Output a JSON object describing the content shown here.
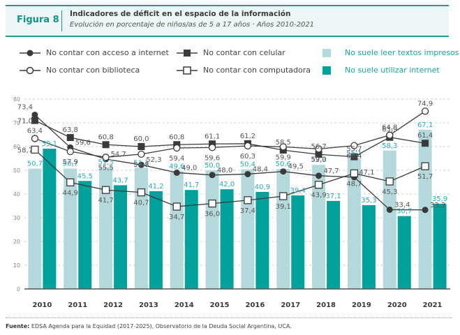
{
  "header": {
    "figure_label": "Figura 8",
    "title": "Indicadores de déficit en el espacio de la información",
    "subtitle": "Evolución en porcentaje de niños/as de 5 a 17 años · Años 2010-2021"
  },
  "legend": [
    {
      "label": "No contar con acceso a internet",
      "symbol": "line-filled-circle"
    },
    {
      "label": "No contar con celular",
      "symbol": "line-filled-square"
    },
    {
      "label": "No suele leer textos impresos",
      "symbol": "bar-light-teal"
    },
    {
      "label": "No contar con biblioteca",
      "symbol": "line-open-circle"
    },
    {
      "label": "No contar con computadora",
      "symbol": "line-open-square"
    },
    {
      "label": "No suele utilizar internet",
      "symbol": "bar-dark-teal"
    }
  ],
  "colors": {
    "bar_light": "#b5d9db",
    "bar_dark": "#00a19b",
    "line": "#3a3a3a",
    "bar_label": "#29a9b9",
    "line_label": "#555555",
    "accent": "#12928a"
  },
  "chart_data": {
    "type": "bar",
    "title": "Indicadores de déficit en el espacio de la información",
    "xlabel": "",
    "ylabel": "",
    "ylim": [
      0,
      80
    ],
    "yticks": [
      0,
      10,
      20,
      30,
      40,
      50,
      60,
      70,
      80
    ],
    "grid": true,
    "legend_position": "top",
    "categories": [
      "2010",
      "2011",
      "2012",
      "2013",
      "2014",
      "2015",
      "2016",
      "2017",
      "2018",
      "2019",
      "2020",
      "2021"
    ],
    "series": [
      {
        "name": "No suele leer textos impresos",
        "kind": "bar",
        "values": [
          50.7,
          50.7,
          51.3,
          51.1,
          49.6,
          50.0,
          50.4,
          50.6,
          52.3,
          55.1,
          58.3,
          67.1
        ]
      },
      {
        "name": "No suele utilizar internet",
        "kind": "bar",
        "values": [
          59.1,
          45.5,
          43.7,
          41.2,
          41.7,
          42.0,
          40.9,
          39.4,
          37.1,
          35.3,
          30.7,
          35.9
        ]
      },
      {
        "name": "No contar con acceso a internet",
        "kind": "line",
        "marker": "filled-circle",
        "values": [
          73.4,
          59.6,
          54.7,
          52.3,
          49.0,
          48.0,
          48.4,
          49.5,
          47.7,
          47.1,
          33.4,
          33.3
        ]
      },
      {
        "name": "No contar con celular",
        "kind": "line",
        "marker": "filled-square",
        "values": [
          71.0,
          63.8,
          60.8,
          60.0,
          60.8,
          61.1,
          61.2,
          58.5,
          56.7,
          55.7,
          63.9,
          61.4
        ]
      },
      {
        "name": "No contar con biblioteca",
        "kind": "line",
        "marker": "open-circle",
        "values": [
          63.4,
          57.9,
          55.5,
          56.8,
          59.4,
          59.6,
          60.3,
          59.9,
          59.0,
          60.4,
          64.8,
          74.9
        ]
      },
      {
        "name": "No contar con computadora",
        "kind": "line",
        "marker": "open-square",
        "values": [
          58.7,
          44.9,
          41.7,
          40.7,
          34.7,
          36.0,
          37.4,
          39.1,
          43.9,
          48.7,
          45.3,
          51.7
        ]
      }
    ]
  },
  "footer": {
    "source_label": "Fuente:",
    "source_text": "EDSA Agenda para la Equidad (2017-2025), Observatorio de la Deuda Social Argentina, UCA."
  }
}
